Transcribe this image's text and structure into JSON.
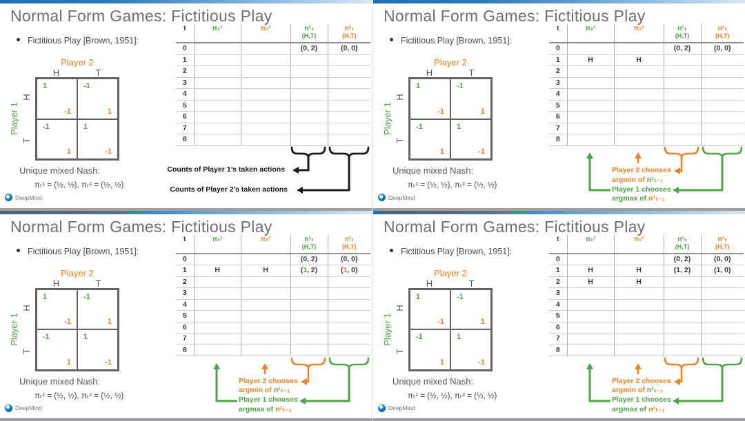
{
  "shared": {
    "title": "Normal Form Games: Fictitious Play",
    "bullet": "Fictitious Play [Brown, 1951]:",
    "matrix": {
      "player2_label": "Player 2",
      "player1_label": "Player 1",
      "col_labels": [
        "H",
        "T"
      ],
      "row_labels": [
        "H",
        "T"
      ],
      "cells": [
        [
          {
            "p1": "1",
            "p2": "-1"
          },
          {
            "p1": "-1",
            "p2": "1"
          }
        ],
        [
          {
            "p1": "-1",
            "p2": "1"
          },
          {
            "p1": "1",
            "p2": "-1"
          }
        ]
      ]
    },
    "nash_label": "Unique mixed Nash:",
    "nash_formula": "πₜ¹ = (½, ½),  πₜ² = (½, ½)",
    "logo_text": "DeepMind",
    "table": {
      "headers": [
        {
          "main": "t",
          "sub": "",
          "c": "k"
        },
        {
          "main": "πₜ¹",
          "sub": "",
          "c": "g"
        },
        {
          "main": "πₜ²",
          "sub": "",
          "c": "o"
        },
        {
          "main": "n¹ₜ",
          "sub": "(H,T)",
          "c": "g"
        },
        {
          "main": "n²ₜ",
          "sub": "(H,T)",
          "c": "o"
        }
      ]
    },
    "colors": {
      "green": "#4ca446",
      "orange": "#ee8123",
      "black_annotation": "#1a1a1a",
      "accent_blue": "#1d6fb5",
      "title_gray": "#6d6e71"
    }
  },
  "slides": [
    {
      "name": "top-left",
      "table_rows": [
        [
          "0",
          "",
          "",
          "(0, 2)",
          "(0, 0)"
        ],
        [
          "1",
          "",
          "",
          "",
          ""
        ],
        [
          "2",
          "",
          "",
          "",
          ""
        ],
        [
          "3",
          "",
          "",
          "",
          ""
        ],
        [
          "4",
          "",
          "",
          "",
          ""
        ],
        [
          "5",
          "",
          "",
          "",
          ""
        ],
        [
          "6",
          "",
          "",
          "",
          ""
        ],
        [
          "7",
          "",
          "",
          "",
          ""
        ],
        [
          "8",
          "",
          "",
          "",
          ""
        ]
      ],
      "annotation": {
        "type": "counts",
        "labels": [
          "Counts of Player 1’s taken actions",
          "Counts of Player 2’s taken actions"
        ]
      }
    },
    {
      "name": "top-right",
      "table_rows": [
        [
          "0",
          "",
          "",
          "(0, 2)",
          "(0, 0)"
        ],
        [
          "1",
          "H",
          "H",
          "",
          ""
        ],
        [
          "2",
          "",
          "",
          "",
          ""
        ],
        [
          "3",
          "",
          "",
          "",
          ""
        ],
        [
          "4",
          "",
          "",
          "",
          ""
        ],
        [
          "5",
          "",
          "",
          "",
          ""
        ],
        [
          "6",
          "",
          "",
          "",
          ""
        ],
        [
          "7",
          "",
          "",
          "",
          ""
        ],
        [
          "8",
          "",
          "",
          "",
          ""
        ]
      ],
      "annotation": {
        "type": "chooses",
        "lines": [
          [
            {
              "t": "Player 2 chooses",
              "c": "o"
            }
          ],
          [
            {
              "t": "argmin of ",
              "c": "o"
            },
            {
              "t": "n¹",
              "c": "g"
            },
            {
              "t": "ₜ₋₁",
              "c": "o"
            }
          ],
          [
            {
              "t": "Player 1 chooses",
              "c": "g"
            }
          ],
          [
            {
              "t": "argmax of ",
              "c": "g"
            },
            {
              "t": "n²ₜ₋₁",
              "c": "o"
            }
          ]
        ]
      }
    },
    {
      "name": "bottom-left",
      "table_rows": [
        [
          "0",
          "",
          "",
          "(0, 2)",
          "(0, 0)"
        ],
        [
          "1",
          "H",
          "H",
          [
            {
              "t": "(",
              "c": "k"
            },
            {
              "t": "1",
              "c": "g"
            },
            {
              "t": ", 2)",
              "c": "k"
            }
          ],
          [
            {
              "t": "(",
              "c": "k"
            },
            {
              "t": "1",
              "c": "o"
            },
            {
              "t": ", 0)",
              "c": "k"
            }
          ]
        ],
        [
          "2",
          "",
          "",
          "",
          ""
        ],
        [
          "3",
          "",
          "",
          "",
          ""
        ],
        [
          "4",
          "",
          "",
          "",
          ""
        ],
        [
          "5",
          "",
          "",
          "",
          ""
        ],
        [
          "6",
          "",
          "",
          "",
          ""
        ],
        [
          "7",
          "",
          "",
          "",
          ""
        ],
        [
          "8",
          "",
          "",
          "",
          ""
        ]
      ],
      "annotation": {
        "type": "chooses",
        "lines": [
          [
            {
              "t": "Player 2 chooses",
              "c": "o"
            }
          ],
          [
            {
              "t": "argmin of ",
              "c": "o"
            },
            {
              "t": "n¹",
              "c": "g"
            },
            {
              "t": "ₜ₋₁",
              "c": "o"
            }
          ],
          [
            {
              "t": "Player 1 chooses",
              "c": "g"
            }
          ],
          [
            {
              "t": "argmax of ",
              "c": "g"
            },
            {
              "t": "n²ₜ₋₁",
              "c": "o"
            }
          ]
        ]
      }
    },
    {
      "name": "bottom-right",
      "table_rows": [
        [
          "0",
          "",
          "",
          "(0, 2)",
          "(0, 0)"
        ],
        [
          "1",
          "H",
          "H",
          "(1, 2)",
          "(1, 0)"
        ],
        [
          "2",
          "H",
          "H",
          "",
          ""
        ],
        [
          "3",
          "",
          "",
          "",
          ""
        ],
        [
          "4",
          "",
          "",
          "",
          ""
        ],
        [
          "5",
          "",
          "",
          "",
          ""
        ],
        [
          "6",
          "",
          "",
          "",
          ""
        ],
        [
          "7",
          "",
          "",
          "",
          ""
        ],
        [
          "8",
          "",
          "",
          "",
          ""
        ]
      ],
      "annotation": {
        "type": "chooses",
        "lines": [
          [
            {
              "t": "Player 2 chooses",
              "c": "o"
            }
          ],
          [
            {
              "t": "argmin of ",
              "c": "o"
            },
            {
              "t": "n¹",
              "c": "g"
            },
            {
              "t": "ₜ₋₁",
              "c": "o"
            }
          ],
          [
            {
              "t": "Player 1 chooses",
              "c": "g"
            }
          ],
          [
            {
              "t": "argmax of ",
              "c": "g"
            },
            {
              "t": "n²ₜ₋₁",
              "c": "o"
            }
          ]
        ]
      }
    }
  ]
}
